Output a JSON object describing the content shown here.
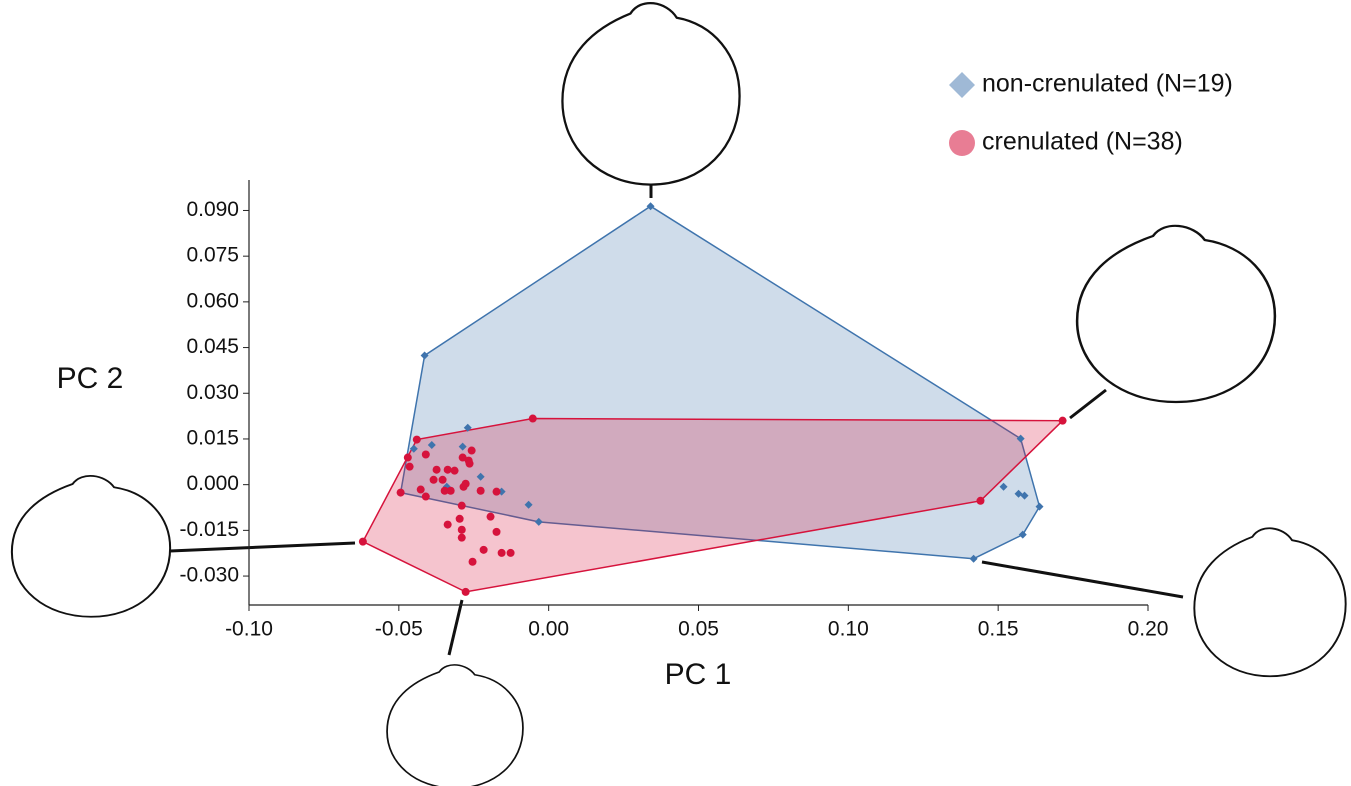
{
  "chart_data": {
    "type": "scatter",
    "x_label": "PC 1",
    "y_label": "PC 2",
    "xlim": [
      -0.1,
      0.2
    ],
    "ylim": [
      -0.0395,
      0.1
    ],
    "xticks": [
      {
        "value": -0.1,
        "label": "-0.10"
      },
      {
        "value": -0.05,
        "label": "-0.05"
      },
      {
        "value": 0,
        "label": "0.00"
      },
      {
        "value": 0.05,
        "label": "0.05"
      },
      {
        "value": 0.1,
        "label": "0.10"
      },
      {
        "value": 0.15,
        "label": "0.15"
      },
      {
        "value": 0.2,
        "label": "0.20"
      }
    ],
    "yticks": [
      {
        "value": -0.03,
        "label": "-0.030"
      },
      {
        "value": -0.015,
        "label": "-0.015"
      },
      {
        "value": 0,
        "label": "0.000"
      },
      {
        "value": 0.015,
        "label": "0.015"
      },
      {
        "value": 0.03,
        "label": "0.030"
      },
      {
        "value": 0.045,
        "label": "0.045"
      },
      {
        "value": 0.06,
        "label": "0.060"
      },
      {
        "value": 0.075,
        "label": "0.075"
      },
      {
        "value": 0.09,
        "label": "0.090"
      }
    ],
    "series": [
      {
        "name": "non-crenulated (N=19)",
        "color": "#3f74ad",
        "marker": "diamond",
        "x": [
          0.034,
          -0.0414,
          -0.027,
          -0.045,
          -0.039,
          -0.0287,
          -0.0227,
          -0.034,
          -0.0494,
          -0.0157,
          -0.0067,
          -0.0033,
          0.1575,
          0.1518,
          0.1568,
          0.1588,
          0.1638,
          0.1582,
          0.1418
        ],
        "values": [
          0.0914,
          0.0424,
          0.0187,
          0.0118,
          0.013,
          0.0125,
          0.0026,
          -0.0007,
          -0.0026,
          -0.0023,
          -0.0066,
          -0.0122,
          0.0151,
          -0.0007,
          -0.003,
          -0.0036,
          -0.0072,
          -0.0164,
          -0.0243
        ]
      },
      {
        "name": "crenulated (N=38)",
        "color": "#d6133c",
        "marker": "circle",
        "x": [
          0.1715,
          -0.0053,
          0.1441,
          -0.0277,
          -0.062,
          -0.044,
          -0.047,
          -0.0464,
          -0.0494,
          -0.041,
          -0.0374,
          -0.0354,
          -0.0337,
          -0.0314,
          -0.0287,
          -0.0267,
          -0.0257,
          -0.0264,
          -0.0347,
          -0.0427,
          -0.041,
          -0.0327,
          -0.0284,
          -0.0277,
          -0.0227,
          -0.0174,
          -0.029,
          -0.0297,
          -0.0194,
          -0.0337,
          -0.029,
          -0.0174,
          -0.0217,
          -0.0157,
          -0.0127,
          -0.0254,
          -0.029,
          -0.0384
        ],
        "values": [
          0.021,
          0.0217,
          -0.0053,
          -0.0352,
          -0.0187,
          0.0148,
          0.0089,
          0.0059,
          -0.0026,
          0.0099,
          0.0049,
          0.0016,
          0.0049,
          0.0046,
          0.0089,
          0.0079,
          0.0112,
          0.0069,
          -0.002,
          -0.0016,
          -0.0039,
          -0.002,
          -0.0007,
          0.0003,
          -0.002,
          -0.0023,
          -0.0069,
          -0.0112,
          -0.0105,
          -0.0131,
          -0.0148,
          -0.0155,
          -0.0214,
          -0.0224,
          -0.0224,
          -0.0253,
          -0.0174,
          0.0016
        ]
      }
    ]
  }
}
